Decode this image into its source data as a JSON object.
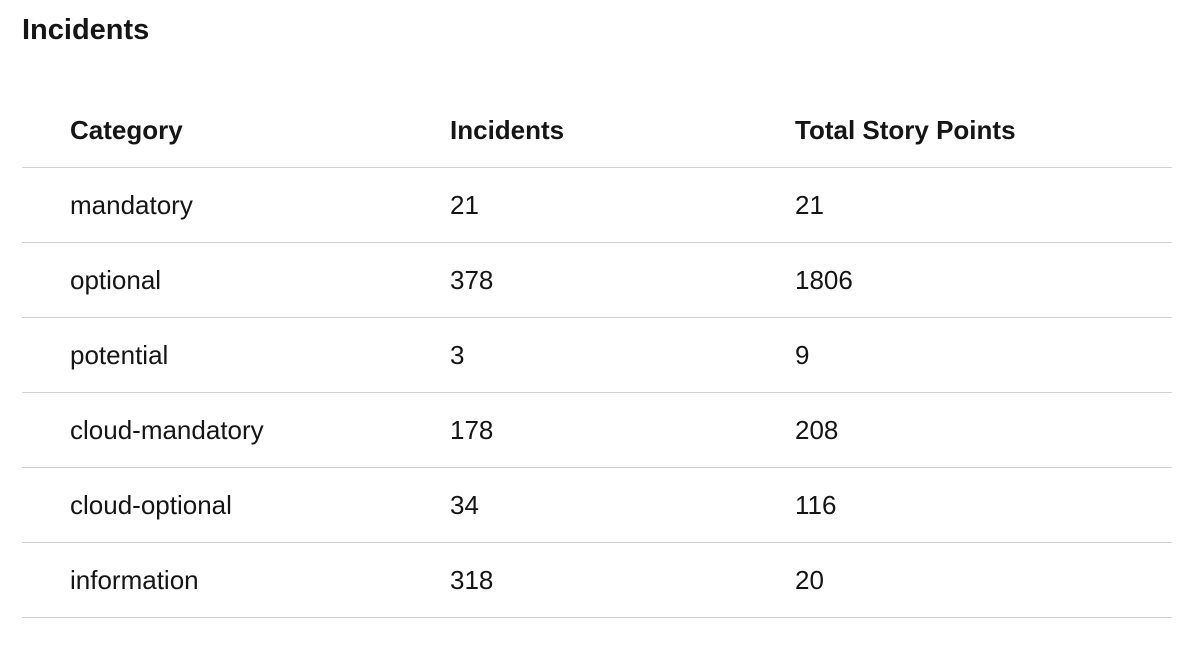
{
  "section": {
    "title": "Incidents"
  },
  "table": {
    "headers": [
      "Category",
      "Incidents",
      "Total Story Points"
    ],
    "rows": [
      [
        "mandatory",
        "21",
        "21"
      ],
      [
        "optional",
        "378",
        "1806"
      ],
      [
        "potential",
        "3",
        "9"
      ],
      [
        "cloud-mandatory",
        "178",
        "208"
      ],
      [
        "cloud-optional",
        "34",
        "116"
      ],
      [
        "information",
        "318",
        "20"
      ]
    ]
  }
}
